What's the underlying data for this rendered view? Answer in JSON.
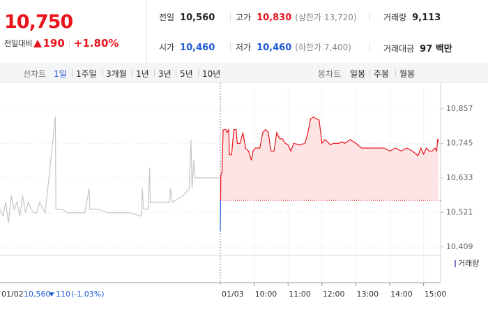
{
  "header": {
    "price": "10,750",
    "change_label": "전일대비",
    "change": "190",
    "rate": "+1.80%"
  },
  "info": [
    {
      "label": "전일",
      "value": "10,560",
      "color": "#222222"
    },
    {
      "label": "고가",
      "value": "10,830",
      "note": "(상한가 13,720)",
      "color": "#e8141c"
    },
    {
      "label": "거래량",
      "value": "9,113",
      "color": "#222222"
    },
    {
      "label": "시가",
      "value": "10,460",
      "color": "#1f5bd6"
    },
    {
      "label": "저가",
      "value": "10,460",
      "note": "(하한가 7,400)",
      "color": "#1f5bd6"
    },
    {
      "label": "거래대금",
      "value": "97 백만",
      "color": "#222222"
    }
  ],
  "tabs": {
    "line_label": "선차트",
    "line": [
      "1일",
      "1주일",
      "3개월",
      "1년",
      "3년",
      "5년",
      "10년"
    ],
    "candle_label": "봉차트",
    "candle": [
      "일봉",
      "주봉",
      "월봉"
    ]
  },
  "chart_data": {
    "type": "line",
    "ylim": [
      10384,
      10927
    ],
    "yticks": [
      {
        "value": 10857,
        "label": "10,857"
      },
      {
        "value": 10745,
        "label": "10,745"
      },
      {
        "value": 10633,
        "label": "10,633"
      },
      {
        "value": 10521,
        "label": "10,521"
      },
      {
        "value": 10409,
        "label": "10,409"
      }
    ],
    "baseline": 10560,
    "baseline_color": "#e8141c",
    "fill_color": "#fde4e4",
    "xlim": [
      0,
      390
    ],
    "xticks": [
      {
        "value": 60,
        "label": "10:00"
      },
      {
        "value": 120,
        "label": "11:00"
      },
      {
        "value": 180,
        "label": "12:00"
      },
      {
        "value": 240,
        "label": "13:00"
      },
      {
        "value": 300,
        "label": "14:00"
      },
      {
        "value": 360,
        "label": "15:00"
      }
    ],
    "grid": true,
    "series": [
      {
        "name": "01/02",
        "color": "#c6c6c6",
        "x": [
          0,
          5,
          10,
          15,
          20,
          25,
          30,
          35,
          40,
          45,
          50,
          55,
          60,
          65,
          70,
          80,
          98,
          99,
          110,
          120,
          135,
          150,
          158,
          159,
          175,
          190,
          210,
          230,
          250,
          252,
          254,
          262,
          265,
          266,
          290,
          300,
          302,
          305,
          325,
          335,
          338,
          340,
          343,
          345,
          350,
          360,
          390
        ],
        "values": [
          10531,
          10509,
          10554,
          10486,
          10576,
          10531,
          10554,
          10509,
          10576,
          10520,
          10554,
          10531,
          10520,
          10520,
          10554,
          10520,
          10832,
          10531,
          10531,
          10520,
          10520,
          10520,
          10599,
          10531,
          10531,
          10520,
          10520,
          10520,
          10509,
          10599,
          10531,
          10531,
          10667,
          10554,
          10554,
          10554,
          10599,
          10554,
          10576,
          10599,
          10757,
          10599,
          10690,
          10633,
          10633,
          10633,
          10633
        ]
      },
      {
        "name": "01/03",
        "color": "#e8141c",
        "down_color": "#1f5bd6",
        "x": [
          0,
          1,
          3,
          5,
          10,
          12,
          15,
          16,
          20,
          24,
          28,
          30,
          35,
          40,
          45,
          50,
          55,
          58,
          62,
          70,
          75,
          80,
          85,
          88,
          90,
          95,
          100,
          105,
          110,
          115,
          120,
          125,
          130,
          140,
          150,
          155,
          160,
          165,
          175,
          180,
          185,
          190,
          195,
          200,
          210,
          215,
          220,
          230,
          240,
          250,
          260,
          270,
          280,
          290,
          300,
          310,
          320,
          330,
          340,
          350,
          355,
          360,
          365,
          370,
          375,
          380,
          383,
          385,
          386
        ],
        "values": [
          10460,
          10644,
          10650,
          10789,
          10790,
          10780,
          10790,
          10708,
          10708,
          10790,
          10790,
          10745,
          10745,
          10780,
          10728,
          10720,
          10690,
          10720,
          10730,
          10730,
          10780,
          10790,
          10780,
          10740,
          10720,
          10720,
          10780,
          10760,
          10760,
          10745,
          10740,
          10720,
          10745,
          10740,
          10745,
          10780,
          10825,
          10830,
          10820,
          10745,
          10757,
          10750,
          10740,
          10745,
          10745,
          10750,
          10745,
          10757,
          10745,
          10730,
          10730,
          10730,
          10730,
          10730,
          10720,
          10730,
          10720,
          10730,
          10720,
          10705,
          10730,
          10710,
          10730,
          10720,
          10720,
          10730,
          10720,
          10760,
          10750
        ]
      }
    ],
    "volume_label": "거래량",
    "hover": {
      "close": "10,560",
      "change": "110",
      "rate": "(-1.03%)"
    }
  }
}
